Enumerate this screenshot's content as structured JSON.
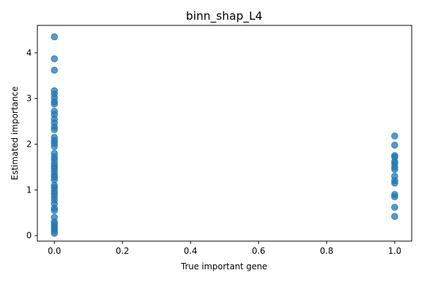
{
  "chart_data": {
    "type": "scatter",
    "title": "binn_shap_L4",
    "xlabel": "True important gene",
    "ylabel": "Estimated importance",
    "xlim": [
      -0.05,
      1.05
    ],
    "ylim": [
      -0.12,
      4.6
    ],
    "xticks": [
      0.0,
      0.2,
      0.4,
      0.6,
      0.8,
      1.0
    ],
    "xtick_labels": [
      "0.0",
      "0.2",
      "0.4",
      "0.6",
      "0.8",
      "1.0"
    ],
    "yticks": [
      0,
      1,
      2,
      3,
      4
    ],
    "ytick_labels": [
      "0",
      "1",
      "2",
      "3",
      "4"
    ],
    "grid": false,
    "marker_color": "#1f77b4",
    "marker_alpha": 0.75,
    "series": [
      {
        "points": [
          {
            "x": 0,
            "y": 4.35
          },
          {
            "x": 0,
            "y": 3.87
          },
          {
            "x": 0,
            "y": 3.62
          },
          {
            "x": 0,
            "y": 3.17
          },
          {
            "x": 0,
            "y": 3.1
          },
          {
            "x": 0,
            "y": 3.02
          },
          {
            "x": 0,
            "y": 2.93
          },
          {
            "x": 0,
            "y": 2.88
          },
          {
            "x": 0,
            "y": 2.72
          },
          {
            "x": 0,
            "y": 2.65
          },
          {
            "x": 0,
            "y": 2.55
          },
          {
            "x": 0,
            "y": 2.47
          },
          {
            "x": 0,
            "y": 2.38
          },
          {
            "x": 0,
            "y": 2.32
          },
          {
            "x": 0,
            "y": 2.15
          },
          {
            "x": 0,
            "y": 2.08
          },
          {
            "x": 0,
            "y": 2.02
          },
          {
            "x": 0,
            "y": 1.95
          },
          {
            "x": 0,
            "y": 1.8
          },
          {
            "x": 0,
            "y": 1.72
          },
          {
            "x": 0,
            "y": 1.66
          },
          {
            "x": 0,
            "y": 1.58
          },
          {
            "x": 0,
            "y": 1.52
          },
          {
            "x": 0,
            "y": 1.47
          },
          {
            "x": 0,
            "y": 1.4
          },
          {
            "x": 0,
            "y": 1.33
          },
          {
            "x": 0,
            "y": 1.28
          },
          {
            "x": 0,
            "y": 1.22
          },
          {
            "x": 0,
            "y": 1.1
          },
          {
            "x": 0,
            "y": 1.05
          },
          {
            "x": 0,
            "y": 0.98
          },
          {
            "x": 0,
            "y": 0.92
          },
          {
            "x": 0,
            "y": 0.85
          },
          {
            "x": 0,
            "y": 0.78
          },
          {
            "x": 0,
            "y": 0.7
          },
          {
            "x": 0,
            "y": 0.6
          },
          {
            "x": 0,
            "y": 0.55
          },
          {
            "x": 0,
            "y": 0.4
          },
          {
            "x": 0,
            "y": 0.3
          },
          {
            "x": 0,
            "y": 0.25
          },
          {
            "x": 0,
            "y": 0.2
          },
          {
            "x": 0,
            "y": 0.15
          },
          {
            "x": 0,
            "y": 0.1
          },
          {
            "x": 0,
            "y": 0.05
          },
          {
            "x": 1,
            "y": 2.18
          },
          {
            "x": 1,
            "y": 1.98
          },
          {
            "x": 1,
            "y": 1.75
          },
          {
            "x": 1,
            "y": 1.72
          },
          {
            "x": 1,
            "y": 1.62
          },
          {
            "x": 1,
            "y": 1.58
          },
          {
            "x": 1,
            "y": 1.5
          },
          {
            "x": 1,
            "y": 1.45
          },
          {
            "x": 1,
            "y": 1.3
          },
          {
            "x": 1,
            "y": 1.2
          },
          {
            "x": 1,
            "y": 1.15
          },
          {
            "x": 1,
            "y": 0.9
          },
          {
            "x": 1,
            "y": 0.85
          },
          {
            "x": 1,
            "y": 0.62
          },
          {
            "x": 1,
            "y": 0.42
          }
        ]
      }
    ]
  }
}
